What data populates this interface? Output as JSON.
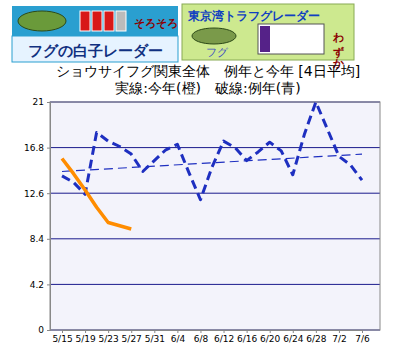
{
  "chart_data": {
    "type": "line",
    "title": "ショウサイフグ関東全体　例年と今年 [4日平均]",
    "subtitle": "実線:今年(橙)　破線:例年(青)",
    "annotations": [
      "フグの白子レーダー",
      "そろそろ",
      "東京湾トラフグレーダー",
      "フグ",
      "わずか"
    ],
    "categories": [
      "5/15",
      null,
      "5/19",
      null,
      "5/23",
      null,
      "5/27",
      null,
      "5/31",
      null,
      "6/4",
      null,
      "6/8",
      null,
      "6/12",
      null,
      "6/16",
      null,
      "6/20",
      null,
      "6/24",
      null,
      "6/28",
      null,
      "7/2",
      null,
      "7/6"
    ],
    "series": [
      {
        "color": "#ff8c00",
        "line_style": "solid",
        "values": [
          15.8,
          14.4,
          12.9,
          11.3,
          9.9,
          9.6,
          9.3,
          null,
          null,
          null,
          null,
          null,
          null,
          null,
          null,
          null,
          null,
          null,
          null,
          null,
          null,
          null,
          null,
          null,
          null,
          null,
          null
        ]
      },
      {
        "color": "#1e2fc0",
        "line_style": "dashed",
        "values": [
          14.2,
          13.6,
          12.5,
          18.2,
          17.4,
          16.9,
          16.2,
          14.6,
          15.6,
          16.6,
          17.1,
          14.5,
          12.0,
          15.0,
          17.4,
          16.8,
          15.6,
          16.4,
          17.3,
          16.5,
          14.3,
          18.0,
          21.0,
          18.5,
          16.0,
          15.2,
          13.8
        ]
      }
    ],
    "trend": {
      "color": "#1e2fc0",
      "line_style": "dashed",
      "values": [
        14.6,
        16.2
      ]
    },
    "ylim": [
      0,
      21
    ],
    "yticks": [
      0,
      4.2,
      8.4,
      12.6,
      16.8,
      21
    ],
    "grid": true
  }
}
